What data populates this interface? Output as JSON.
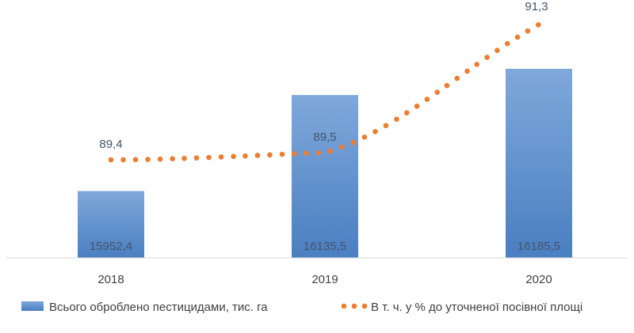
{
  "chart_data": {
    "type": "bar",
    "categories": [
      "2018",
      "2019",
      "2020"
    ],
    "series": [
      {
        "name": "Всього оброблено  пестицидами, тис. га",
        "kind": "bar",
        "values": [
          15952.4,
          16135.5,
          16185.5
        ],
        "labels": [
          "15952,4",
          "16135,5",
          "16185,5"
        ],
        "color": "#5B8FD0"
      },
      {
        "name": "В т. ч. у % до уточненої посівної площі",
        "kind": "line-dotted",
        "values": [
          89.4,
          89.5,
          91.3
        ],
        "labels": [
          "89,4",
          "89,5",
          "91,3"
        ],
        "color": "#ED7D31"
      }
    ],
    "legend_position": "bottom",
    "grid": false
  }
}
